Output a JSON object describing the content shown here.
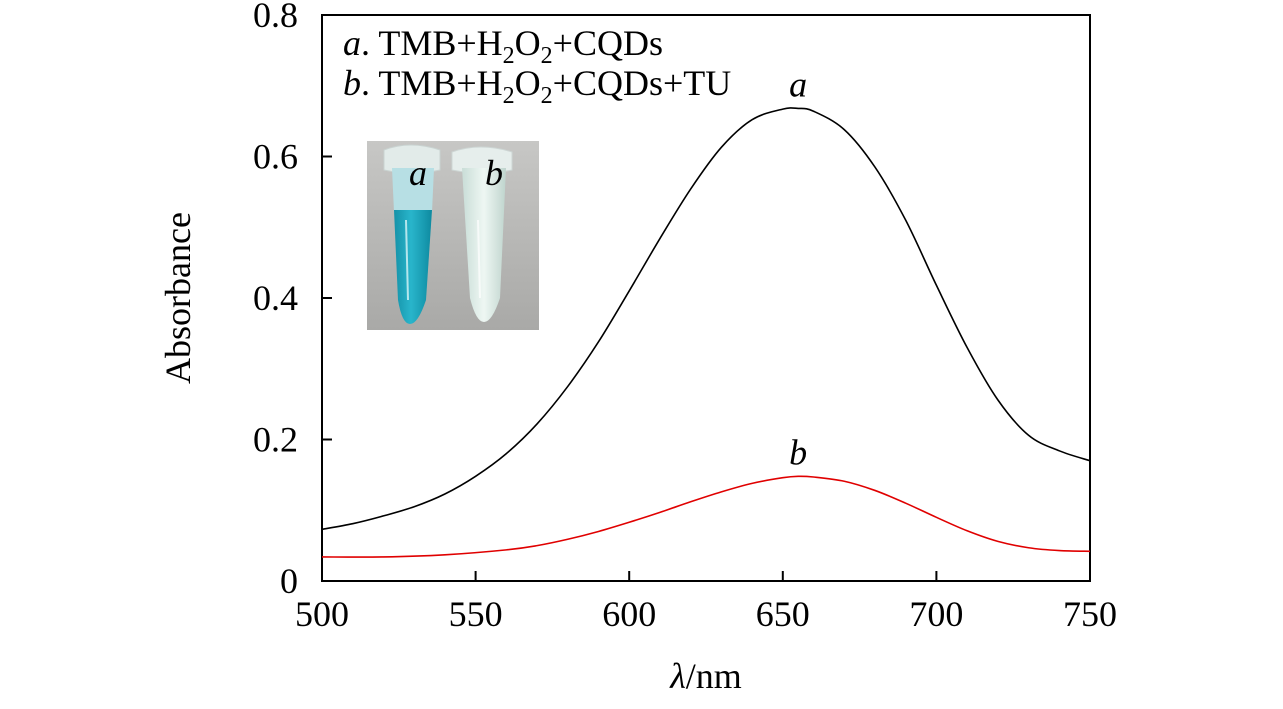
{
  "chart_data": {
    "type": "line",
    "title": "",
    "xlabel_symbol": "λ",
    "xlabel_unit": "/nm",
    "ylabel": "Absorbance",
    "xlim": [
      500,
      750
    ],
    "ylim": [
      0,
      0.8
    ],
    "x_ticks": [
      500,
      550,
      600,
      650,
      700,
      750
    ],
    "x_tick_labels": [
      "500",
      "550",
      "600",
      "650",
      "700",
      "750"
    ],
    "y_ticks": [
      0,
      0.2,
      0.4,
      0.6,
      0.8
    ],
    "y_tick_labels": [
      "0",
      "0.2",
      "0.4",
      "0.6",
      "0.8"
    ],
    "legend": [
      {
        "key": "a",
        "sep": ".",
        "parts": [
          {
            "t": " TMB+H"
          },
          {
            "t": "2",
            "sub": true
          },
          {
            "t": "O"
          },
          {
            "t": "2",
            "sub": true
          },
          {
            "t": "+CQDs"
          }
        ]
      },
      {
        "key": "b",
        "sep": ".",
        "parts": [
          {
            "t": " TMB+H"
          },
          {
            "t": "2",
            "sub": true
          },
          {
            "t": "O"
          },
          {
            "t": "2",
            "sub": true
          },
          {
            "t": "+CQDs+TU"
          }
        ]
      }
    ],
    "series": [
      {
        "name": "a",
        "label": "a",
        "color": "#000000",
        "x": [
          500,
          510,
          520,
          530,
          540,
          550,
          560,
          570,
          580,
          590,
          600,
          610,
          620,
          630,
          640,
          650,
          655,
          660,
          670,
          680,
          690,
          700,
          710,
          720,
          730,
          740,
          750
        ],
        "y": [
          0.073,
          0.081,
          0.092,
          0.105,
          0.123,
          0.148,
          0.18,
          0.222,
          0.275,
          0.338,
          0.41,
          0.484,
          0.554,
          0.613,
          0.652,
          0.667,
          0.668,
          0.664,
          0.638,
          0.585,
          0.51,
          0.418,
          0.33,
          0.256,
          0.206,
          0.184,
          0.17
        ]
      },
      {
        "name": "b",
        "label": "b",
        "color": "#e00000",
        "x": [
          500,
          520,
          540,
          560,
          570,
          580,
          590,
          600,
          610,
          620,
          630,
          640,
          650,
          655,
          660,
          670,
          680,
          690,
          700,
          710,
          720,
          730,
          740,
          750
        ],
        "y": [
          0.034,
          0.034,
          0.037,
          0.044,
          0.05,
          0.059,
          0.07,
          0.083,
          0.097,
          0.112,
          0.126,
          0.138,
          0.146,
          0.148,
          0.147,
          0.141,
          0.128,
          0.11,
          0.09,
          0.071,
          0.056,
          0.047,
          0.043,
          0.042
        ]
      }
    ],
    "curve_label_positions": [
      {
        "series": "a",
        "x": 655,
        "y": 0.685
      },
      {
        "series": "b",
        "x": 655,
        "y": 0.165
      }
    ]
  },
  "inset": {
    "description_labels": [
      "a",
      "b"
    ],
    "background_color": "#b9b9b7",
    "tube_a_color": "#1fa7bd",
    "tube_b_color": "#d8ece6",
    "cap_color": "#e6eeec"
  }
}
